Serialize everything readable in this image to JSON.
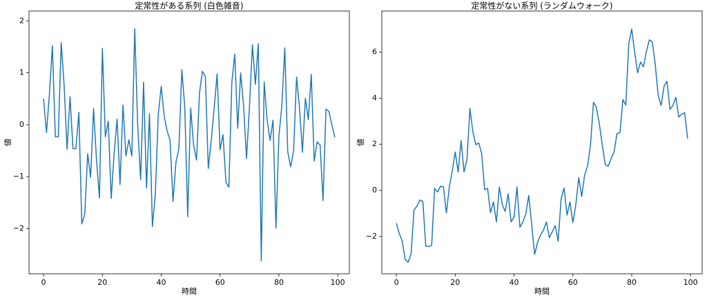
{
  "chart_data": [
    {
      "type": "line",
      "title": "定常性がある系列 (白色雑音)",
      "xlabel": "時間",
      "ylabel": "値",
      "color": "#1f77b4",
      "x": [
        0,
        1,
        2,
        3,
        4,
        5,
        6,
        7,
        8,
        9,
        10,
        11,
        12,
        13,
        14,
        15,
        16,
        17,
        18,
        19,
        20,
        21,
        22,
        23,
        24,
        25,
        26,
        27,
        28,
        29,
        30,
        31,
        32,
        33,
        34,
        35,
        36,
        37,
        38,
        39,
        40,
        41,
        42,
        43,
        44,
        45,
        46,
        47,
        48,
        49,
        50,
        51,
        52,
        53,
        54,
        55,
        56,
        57,
        58,
        59,
        60,
        61,
        62,
        63,
        64,
        65,
        66,
        67,
        68,
        69,
        70,
        71,
        72,
        73,
        74,
        75,
        76,
        77,
        78,
        79,
        80,
        81,
        82,
        83,
        84,
        85,
        86,
        87,
        88,
        89,
        90,
        91,
        92,
        93,
        94,
        95,
        96,
        97,
        98,
        99
      ],
      "values": [
        0.5,
        -0.15,
        0.6,
        1.52,
        -0.23,
        -0.23,
        1.58,
        0.75,
        -0.47,
        0.54,
        -0.46,
        -0.46,
        0.24,
        -1.91,
        -1.72,
        -0.56,
        -1.01,
        0.31,
        -0.68,
        -1.41,
        1.47,
        -0.23,
        0.07,
        -1.42,
        -0.54,
        0.11,
        -1.15,
        0.38,
        -0.6,
        -0.29,
        -0.6,
        1.85,
        -0.01,
        -1.06,
        0.82,
        -1.22,
        0.21,
        -1.96,
        -1.33,
        0.2,
        0.74,
        0.17,
        -0.12,
        -0.3,
        -1.48,
        -0.72,
        -0.46,
        1.06,
        0.34,
        -1.77,
        0.32,
        -0.39,
        -0.68,
        0.61,
        1.03,
        0.93,
        -0.84,
        -0.31,
        0.33,
        0.98,
        -0.48,
        -0.19,
        -1.11,
        -1.2,
        0.81,
        1.36,
        -0.07,
        1.0,
        0.36,
        -0.65,
        0.36,
        1.54,
        0.78,
        1.56,
        -2.62,
        0.82,
        0.09,
        -0.3,
        0.09,
        -1.99,
        -0.22,
        0.36,
        1.48,
        -0.52,
        -0.81,
        -0.5,
        0.92,
        0.33,
        -0.53,
        0.51,
        0.1,
        0.97,
        -0.7,
        -0.33,
        -0.39,
        -1.46,
        0.3,
        0.26,
        0.0,
        -0.24
      ],
      "xlim": [
        -4.95,
        103.95
      ],
      "xticks": [
        0,
        20,
        40,
        60,
        80,
        100
      ],
      "ylim": [
        -2.87,
        2.19
      ],
      "yticks": [
        {
          "value": -2,
          "label": "−2"
        },
        {
          "value": -1,
          "label": "−1"
        },
        0,
        1,
        2
      ]
    },
    {
      "type": "line",
      "title": "定常性がない系列 (ランダムウォーク)",
      "xlabel": "時間",
      "ylabel": "値",
      "color": "#1f77b4",
      "x": [
        0,
        1,
        2,
        3,
        4,
        5,
        6,
        7,
        8,
        9,
        10,
        11,
        12,
        13,
        14,
        15,
        16,
        17,
        18,
        19,
        20,
        21,
        22,
        23,
        24,
        25,
        26,
        27,
        28,
        29,
        30,
        31,
        32,
        33,
        34,
        35,
        36,
        37,
        38,
        39,
        40,
        41,
        42,
        43,
        44,
        45,
        46,
        47,
        48,
        49,
        50,
        51,
        52,
        53,
        54,
        55,
        56,
        57,
        58,
        59,
        60,
        61,
        62,
        63,
        64,
        65,
        66,
        67,
        68,
        69,
        70,
        71,
        72,
        73,
        74,
        75,
        76,
        77,
        78,
        79,
        80,
        81,
        82,
        83,
        84,
        85,
        86,
        87,
        88,
        89,
        90,
        91,
        92,
        93,
        94,
        95,
        96,
        97,
        98,
        99
      ],
      "values": [
        -1.42,
        -1.88,
        -2.2,
        -3.0,
        -3.12,
        -2.75,
        -0.85,
        -0.68,
        -0.42,
        -0.48,
        -2.42,
        -2.44,
        -2.38,
        0.08,
        -0.07,
        0.18,
        0.15,
        -0.98,
        0.14,
        0.84,
        1.67,
        0.79,
        2.16,
        0.8,
        1.34,
        3.55,
        2.55,
        1.98,
        2.06,
        1.59,
        0.03,
        0.09,
        -0.97,
        -0.5,
        -1.37,
        0.14,
        -0.62,
        -0.92,
        -0.15,
        -1.37,
        -1.17,
        0.15,
        -1.6,
        -1.37,
        -1.02,
        -0.22,
        -1.48,
        -2.78,
        -2.25,
        -1.94,
        -1.73,
        -1.37,
        -2.05,
        -1.8,
        -1.53,
        -2.21,
        -0.37,
        0.1,
        -1.07,
        -0.5,
        -1.4,
        -0.62,
        0.55,
        -0.27,
        0.67,
        1.06,
        1.97,
        3.82,
        3.6,
        2.88,
        1.96,
        1.12,
        1.04,
        1.38,
        1.66,
        2.47,
        2.5,
        3.94,
        3.7,
        6.36,
        7.0,
        6.0,
        5.1,
        5.57,
        5.36,
        6.04,
        6.53,
        6.44,
        5.46,
        4.12,
        3.68,
        4.52,
        4.73,
        3.51,
        3.68,
        4.04,
        3.18,
        3.31,
        3.37,
        2.25
      ],
      "xlim": [
        -4.95,
        103.95
      ],
      "xticks": [
        0,
        20,
        40,
        60,
        80,
        100
      ],
      "ylim": [
        -3.62,
        7.78
      ],
      "yticks": [
        {
          "value": -2,
          "label": "−2"
        },
        0,
        2,
        4,
        6
      ]
    }
  ]
}
